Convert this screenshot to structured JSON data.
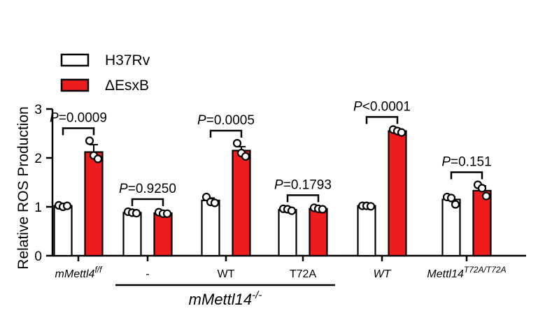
{
  "chart_data": {
    "type": "bar",
    "ylabel": "Relative ROS Production",
    "ylim": [
      0,
      3
    ],
    "yticks": [
      0,
      1,
      2,
      3
    ],
    "legend": {
      "position": "top-left"
    },
    "series": [
      {
        "name": "H37Rv",
        "color": "#ffffff",
        "edge": "#000000"
      },
      {
        "name": "ΔEsxB",
        "color": "#ee1c1c",
        "edge": "#000000"
      }
    ],
    "groups": [
      {
        "label": "mMettl4",
        "label_sup": "f/f",
        "italic": true,
        "values": [
          1.02,
          2.12
        ],
        "errors": [
          0.03,
          0.15
        ],
        "points": [
          [
            1.03,
            1.0,
            1.02
          ],
          [
            2.35,
            2.05,
            1.98
          ]
        ],
        "p_label": "P",
        "p_text": "=0.0009"
      },
      {
        "label": "-",
        "label_sup": "",
        "italic": false,
        "values": [
          0.88,
          0.87
        ],
        "errors": [
          0.02,
          0.02
        ],
        "points": [
          [
            0.9,
            0.88,
            0.87
          ],
          [
            0.89,
            0.86,
            0.86
          ]
        ],
        "p_label": "P",
        "p_text": "=0.9250"
      },
      {
        "label": "WT",
        "label_sup": "",
        "italic": false,
        "values": [
          1.13,
          2.15
        ],
        "errors": [
          0.05,
          0.08
        ],
        "points": [
          [
            1.2,
            1.1,
            1.08
          ],
          [
            2.3,
            2.1,
            2.03
          ]
        ],
        "p_label": "P",
        "p_text": "=0.0005"
      },
      {
        "label": "T72A",
        "label_sup": "",
        "italic": false,
        "values": [
          0.94,
          0.96
        ],
        "errors": [
          0.02,
          0.02
        ],
        "points": [
          [
            0.96,
            0.95,
            0.92
          ],
          [
            0.98,
            0.96,
            0.95
          ]
        ],
        "p_label": "P",
        "p_text": "=0.1793"
      },
      {
        "label": "WT",
        "label_sup": "",
        "italic": true,
        "values": [
          1.02,
          2.55
        ],
        "errors": [
          0.01,
          0.03
        ],
        "points": [
          [
            1.02,
            1.02,
            1.01
          ],
          [
            2.58,
            2.55,
            2.52
          ]
        ],
        "p_label": "P",
        "p_text": "<0.0001"
      },
      {
        "label": "Mettl14",
        "label_sup": "T72A/T72A",
        "italic": true,
        "values": [
          1.15,
          1.33
        ],
        "errors": [
          0.05,
          0.1
        ],
        "points": [
          [
            1.2,
            1.18,
            1.05
          ],
          [
            1.45,
            1.38,
            1.22
          ]
        ],
        "p_label": "P",
        "p_text": "=0.151"
      }
    ],
    "group_bracket": {
      "label": "mMettl14",
      "label_sup": "-/-",
      "italic": true,
      "spans": [
        1,
        3
      ]
    }
  }
}
